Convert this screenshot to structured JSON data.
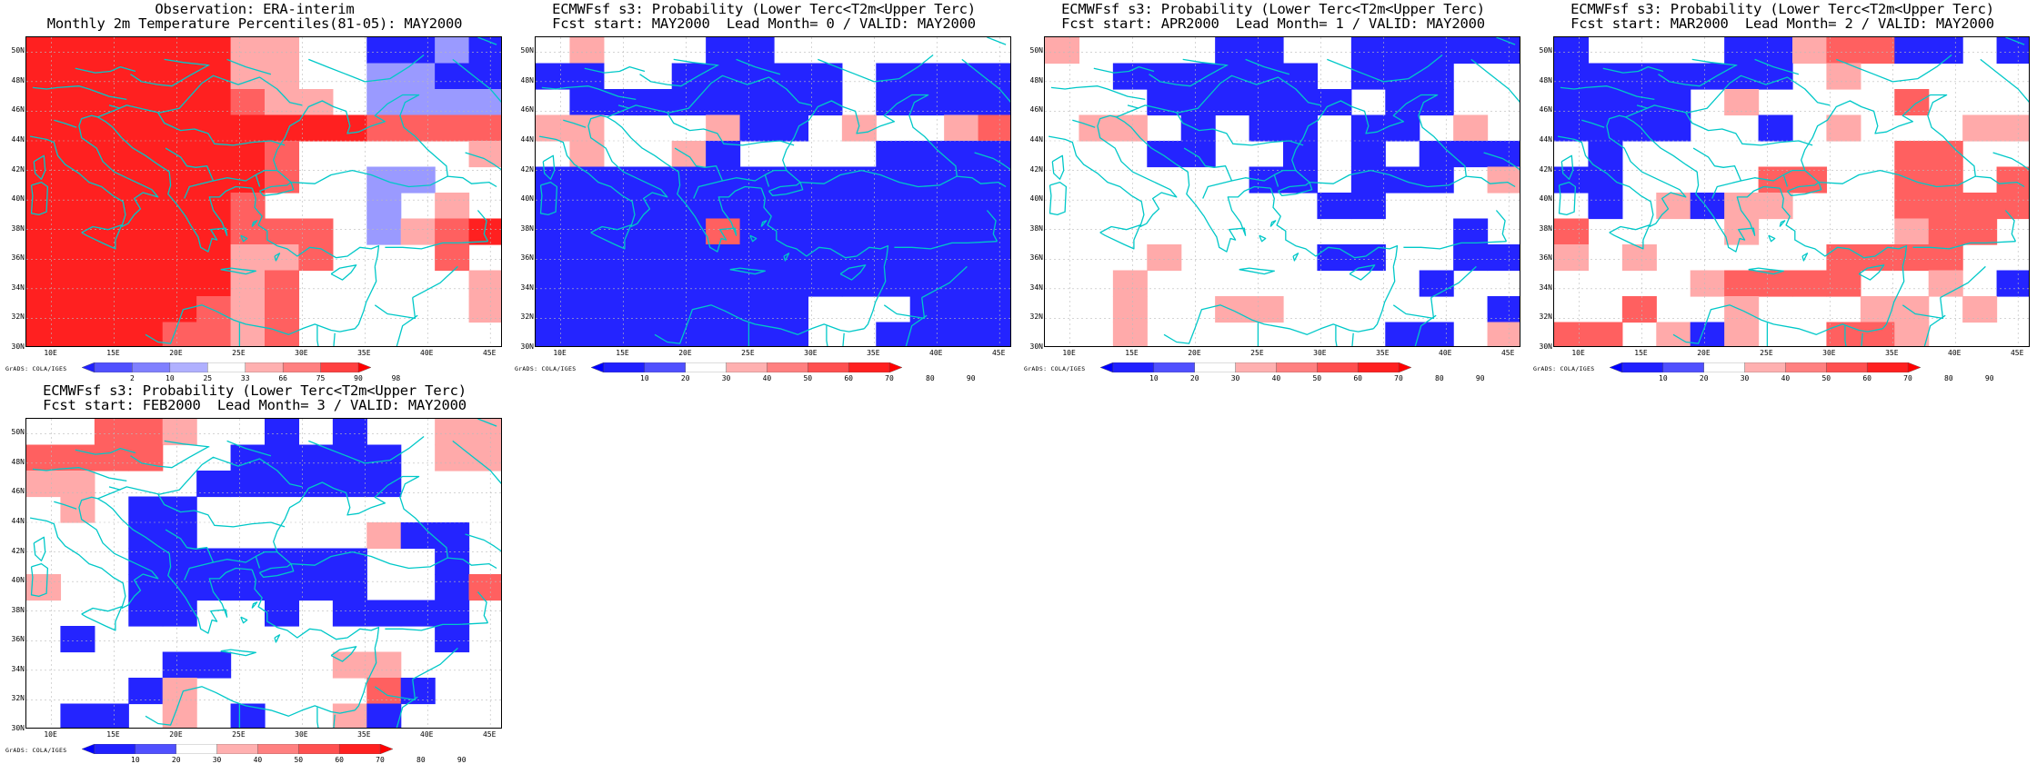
{
  "panels": [
    {
      "id": "obs",
      "title_line1": "Observation: ERA-interim",
      "title_line2": "Monthly 2m Temperature Percentiles(81-05): MAY2000",
      "colorbar_labels": [
        "2",
        "10",
        "25",
        "33",
        "66",
        "75",
        "90",
        "98"
      ],
      "colorbar_colors": [
        "#2020ff",
        "#5050ff",
        "#8080ff",
        "#b0b0ff",
        "#ffffff",
        "#ffb0b0",
        "#ff8080",
        "#ff4040",
        "#ff0000"
      ],
      "grid": [
        "RRRRRRpp..BBbB",
        "RRRRRRpp..bbBB",
        "RRRRRRrpp.bbbb",
        "RRRRRRRRRRrrrr",
        "RRRRRRRr.....p",
        "RRRRRRRr..bb..",
        "RRRRRRr...b.p.",
        "RRRRRRrrr.bprR",
        "RRRRRRppr...r.",
        "RRRRRRpr.....p",
        "RRRRRrpr.....p",
        "RRRRrrpr......"
      ]
    },
    {
      "id": "lead0",
      "title_line1": "ECMWFsf s3: Probability (Lower Terc<T2m<Upper Terc)",
      "title_line2": "Fcst start: MAY2000  Lead Month= 0 / VALID: MAY2000",
      "colorbar_labels": [
        "10",
        "20",
        "30",
        "40",
        "50",
        "60",
        "70",
        "80",
        "90"
      ],
      "colorbar_colors": [
        "#0000ff",
        "#2020ff",
        "#5050ff",
        "#ffffff",
        "#ffb0b0",
        "#ff8080",
        "#ff5050",
        "#ff2020",
        "#ff0000"
      ],
      "grid": [
        ".p...BB.......",
        "BB..BBBBB.BBBB",
        ".BBBBBBBB.BBBB",
        "pp...pBB.p..pr",
        ".p..pB....BBBB",
        "BBBBBBBBBBBBBB",
        "BBBBBBBBBBBBBB",
        "BBBBBrBBBBBBBB",
        "BBBBBBBBBBBBBB",
        "BBBBBBBBBBBBBB",
        "BBBBBBBB...BBB",
        "BBBBBBBB..BBBB"
      ]
    },
    {
      "id": "lead1",
      "title_line1": "ECMWFsf s3: Probability (Lower Terc<T2m<Upper Terc)",
      "title_line2": "Fcst start: APR2000  Lead Month= 1 / VALID: MAY2000",
      "colorbar_labels": [
        "10",
        "20",
        "30",
        "40",
        "50",
        "60",
        "70",
        "80",
        "90"
      ],
      "colorbar_colors": [
        "#0000ff",
        "#2020ff",
        "#5050ff",
        "#ffffff",
        "#ffb0b0",
        "#ff8080",
        "#ff5050",
        "#ff2020",
        "#ff0000"
      ],
      "grid": [
        "p....BB..BBBBB",
        "..BBBBBB.BBB..",
        "...BBBBBB.BB..",
        ".pp.B.BB.BB.p.",
        "...BB..B.B.BBB",
        "......BB.BBB.p",
        "........BB....",
        "............B.",
        "...p....BB..BB",
        "..p........B..",
        "..p..pp......B",
        "..p.......BB.p"
      ]
    },
    {
      "id": "lead2",
      "title_line1": "ECMWFsf s3: Probability (Lower Terc<T2m<Upper Terc)",
      "title_line2": "Fcst start: MAR2000  Lead Month= 2 / VALID: MAY2000",
      "colorbar_labels": [
        "10",
        "20",
        "30",
        "40",
        "50",
        "60",
        "70",
        "80",
        "90"
      ],
      "colorbar_colors": [
        "#0000ff",
        "#2020ff",
        "#5050ff",
        "#ffffff",
        "#ffb0b0",
        "#ff8080",
        "#ff5050",
        "#ff2020",
        "#ff0000"
      ],
      "grid": [
        "B....BBprrBB.B",
        "BBBBBBB.p.....",
        "BBBB.p....r...",
        "BBBB..B.p...pp",
        ".B........rr..",
        "BB....rr..rr.r",
        ".B.pBpp...rrrr",
        "r....p....prr.",
        "p.p.....rrrr..",
        "....prrrr..p.B",
        "..r..p...pp.p.",
        "rr.pBp..rrp..."
      ]
    },
    {
      "id": "lead3",
      "title_line1": "ECMWFsf s3: Probability (Lower Terc<T2m<Upper Terc)",
      "title_line2": "Fcst start: FEB2000  Lead Month= 3 / VALID: MAY2000",
      "colorbar_labels": [
        "10",
        "20",
        "30",
        "40",
        "50",
        "60",
        "70",
        "80",
        "90"
      ],
      "colorbar_colors": [
        "#0000ff",
        "#2020ff",
        "#5050ff",
        "#ffffff",
        "#ffb0b0",
        "#ff8080",
        "#ff5050",
        "#ff2020",
        "#ff0000"
      ],
      "grid": [
        "..rrp..B.B..pp",
        "rrrr..BBBBB.pp",
        "pp...BBBBBB...",
        ".p.BB.........",
        "...BB.....pBB.",
        "...BBBBBBB..B.",
        "p..BBBBBBB..Br",
        "...BB..B.BBBB.",
        ".B..........B.",
        "....BB...pp...",
        "...Bp.....rB..",
        ".BB.p.B..pB..."
      ]
    }
  ],
  "axes": {
    "lat_labels": [
      "50N",
      "48N",
      "46N",
      "44N",
      "42N",
      "40N",
      "38N",
      "36N",
      "34N",
      "32N",
      "30N"
    ],
    "lon_labels": [
      "10E",
      "15E",
      "20E",
      "25E",
      "30E",
      "35E",
      "40E",
      "45E"
    ],
    "lat_range": [
      30,
      51
    ],
    "lon_range": [
      8,
      46
    ]
  },
  "grads_label": "GrADS: COLA/IGES",
  "cell_colors": {
    "B": "#2424ff",
    "b": "#9a9aff",
    "p": "#ffaaaa",
    "r": "#ff6060",
    "R": "#ff2020",
    ".": "#ffffff"
  },
  "coast_color": "#00c8c8"
}
